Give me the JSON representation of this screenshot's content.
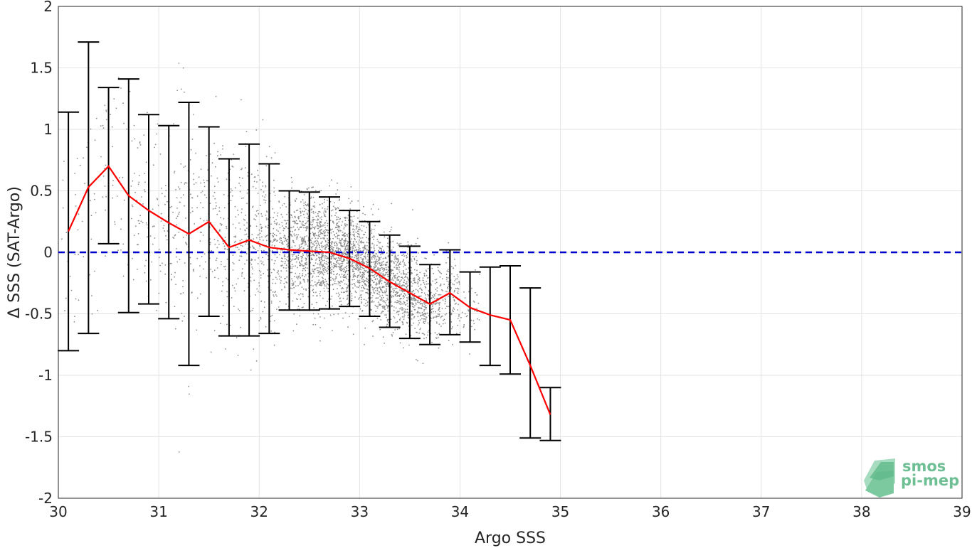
{
  "chart_data": {
    "type": "scatter",
    "xlabel": "Argo SSS",
    "ylabel": "Δ SSS (SAT-Argo)",
    "xlim": [
      30,
      39
    ],
    "ylim": [
      -2,
      2
    ],
    "xticks": [
      "30",
      "31",
      "32",
      "33",
      "34",
      "35",
      "36",
      "37",
      "38",
      "39"
    ],
    "yticks": [
      "2",
      "1.5",
      "1",
      "0.5",
      "0",
      "-0.5",
      "-1",
      "-1.5",
      "-2"
    ],
    "grid": true,
    "zero_line": {
      "y": 0,
      "style": "dashed",
      "color": "#0000cc"
    },
    "mean_series": {
      "color": "#ff0000",
      "x": [
        30.1,
        30.3,
        30.5,
        30.7,
        30.9,
        31.1,
        31.3,
        31.5,
        31.7,
        31.9,
        32.1,
        32.3,
        32.5,
        32.7,
        32.9,
        33.1,
        33.3,
        33.5,
        33.7,
        33.9,
        34.1,
        34.3,
        34.5,
        34.7,
        34.9
      ],
      "y": [
        0.17,
        0.53,
        0.7,
        0.46,
        0.34,
        0.24,
        0.15,
        0.25,
        0.04,
        0.1,
        0.04,
        0.02,
        0.01,
        0.0,
        -0.05,
        -0.13,
        -0.24,
        -0.33,
        -0.42,
        -0.33,
        -0.45,
        -0.51,
        -0.55,
        -0.92,
        -1.32
      ]
    },
    "error_bars": {
      "color": "#000000",
      "lower": [
        -0.8,
        -0.66,
        0.07,
        -0.49,
        -0.42,
        -0.54,
        -0.92,
        -0.52,
        -0.68,
        -0.68,
        -0.66,
        -0.47,
        -0.47,
        -0.46,
        -0.44,
        -0.52,
        -0.61,
        -0.7,
        -0.75,
        -0.67,
        -0.73,
        -0.92,
        -0.99,
        -1.51,
        -1.53
      ],
      "upper": [
        1.14,
        1.71,
        1.34,
        1.41,
        1.12,
        1.03,
        1.22,
        1.02,
        0.76,
        0.88,
        0.72,
        0.5,
        0.49,
        0.45,
        0.34,
        0.25,
        0.14,
        0.05,
        -0.1,
        0.02,
        -0.16,
        -0.12,
        -0.11,
        -0.29,
        -1.1
      ]
    },
    "scatter": {
      "color": "#8c8c8c",
      "description": "individual SAT-Argo collocations"
    },
    "logo": {
      "line1": "smos",
      "line2": "pi-mep"
    }
  }
}
